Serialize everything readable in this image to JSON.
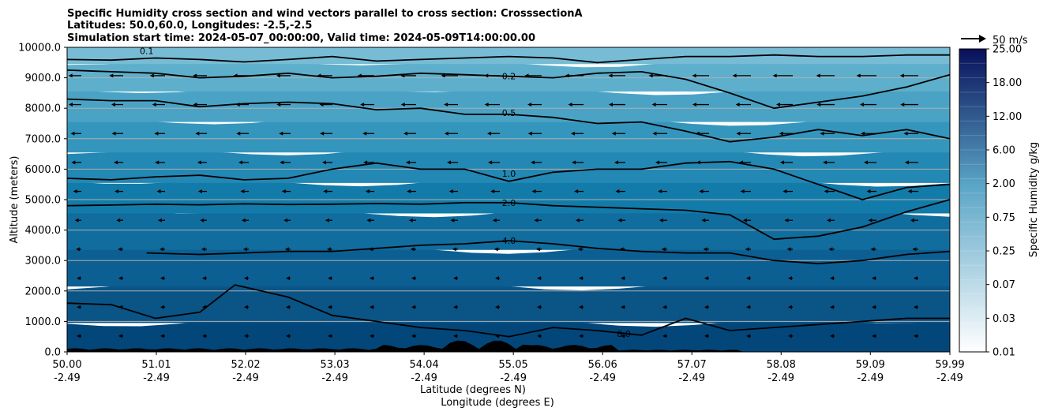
{
  "title_lines": [
    "Specific Humidity cross section and wind vectors parallel to cross section: CrosssectionA",
    "Latitudes: 50.0,60.0, Longitudes: -2.5,-2.5",
    "Simulation start time: 2024-05-07_00:00:00, Valid time: 2024-05-09T14:00:00.00"
  ],
  "quiver_key": {
    "label": "50 m/s"
  },
  "colors": {
    "terrain": "#000000",
    "gridline": "#b0b0b0",
    "contour": "#000000",
    "vector": "#000000"
  },
  "chart_data": {
    "type": "contourf",
    "title": "Specific Humidity cross section and wind vectors parallel to cross section: CrosssectionA",
    "xlabel_lat": "Latitude (degrees N)",
    "xlabel_lon": "Longitude (degrees E)",
    "ylabel": "Altitude (meters)",
    "ylim": [
      0,
      10000
    ],
    "xlim": [
      50.0,
      59.99
    ],
    "y_ticks": [
      "0.0",
      "1000.0",
      "2000.0",
      "3000.0",
      "4000.0",
      "5000.0",
      "6000.0",
      "7000.0",
      "8000.0",
      "9000.0",
      "10000.0"
    ],
    "y_tick_values": [
      0,
      1000,
      2000,
      3000,
      4000,
      5000,
      6000,
      7000,
      8000,
      9000,
      10000
    ],
    "x_ticks": [
      {
        "lat": "50.00",
        "lon": "-2.49",
        "value": 50.0
      },
      {
        "lat": "51.01",
        "lon": "-2.49",
        "value": 51.01
      },
      {
        "lat": "52.02",
        "lon": "-2.49",
        "value": 52.02
      },
      {
        "lat": "53.03",
        "lon": "-2.49",
        "value": 53.03
      },
      {
        "lat": "54.04",
        "lon": "-2.49",
        "value": 54.04
      },
      {
        "lat": "55.05",
        "lon": "-2.49",
        "value": 55.05
      },
      {
        "lat": "56.06",
        "lon": "-2.49",
        "value": 56.06
      },
      {
        "lat": "57.07",
        "lon": "-2.49",
        "value": 57.07
      },
      {
        "lat": "58.08",
        "lon": "-2.49",
        "value": 58.08
      },
      {
        "lat": "59.09",
        "lon": "-2.49",
        "value": 59.09
      },
      {
        "lat": "59.99",
        "lon": "-2.49",
        "value": 59.99
      }
    ],
    "colorbar": {
      "label": "Specific Humidity g/kg",
      "tick_labels": [
        "0.01",
        "0.03",
        "0.07",
        "0.25",
        "0.75",
        "2.00",
        "6.00",
        "12.00",
        "18.00",
        "25.00"
      ],
      "levels": 21,
      "color_low": "#ffffff",
      "color_mid": "#5aa5c6",
      "color_high": "#08105a"
    },
    "humidity_bands": [
      {
        "alt_bottom": 0,
        "alt_top": 1000,
        "color": "#03467a"
      },
      {
        "alt_bottom": 1000,
        "alt_top": 2200,
        "color": "#0a5486"
      },
      {
        "alt_bottom": 2200,
        "alt_top": 3400,
        "color": "#0c5f92"
      },
      {
        "alt_bottom": 3400,
        "alt_top": 4600,
        "color": "#106d9e"
      },
      {
        "alt_bottom": 4600,
        "alt_top": 5600,
        "color": "#127ba9"
      },
      {
        "alt_bottom": 5600,
        "alt_top": 6600,
        "color": "#2388b3"
      },
      {
        "alt_bottom": 6600,
        "alt_top": 7600,
        "color": "#3596bd"
      },
      {
        "alt_bottom": 7600,
        "alt_top": 8600,
        "color": "#4aa3c5"
      },
      {
        "alt_bottom": 8600,
        "alt_top": 9500,
        "color": "#5dafcc"
      },
      {
        "alt_bottom": 9500,
        "alt_top": 10000,
        "color": "#77bcd4"
      }
    ],
    "contours": [
      {
        "level": "0.1",
        "label_pos": [
          50.9,
          9880
        ],
        "points": [
          [
            50.0,
            9600
          ],
          [
            50.5,
            9580
          ],
          [
            51.0,
            9650
          ],
          [
            51.5,
            9600
          ],
          [
            52.0,
            9520
          ],
          [
            52.5,
            9600
          ],
          [
            53.0,
            9700
          ],
          [
            53.5,
            9550
          ],
          [
            54.0,
            9600
          ],
          [
            54.5,
            9650
          ],
          [
            55.0,
            9700
          ],
          [
            55.5,
            9650
          ],
          [
            56.0,
            9500
          ],
          [
            56.5,
            9600
          ],
          [
            57.0,
            9700
          ],
          [
            57.5,
            9700
          ],
          [
            58.0,
            9750
          ],
          [
            58.5,
            9700
          ],
          [
            59.0,
            9700
          ],
          [
            59.5,
            9750
          ],
          [
            59.99,
            9750
          ]
        ]
      },
      {
        "level": "0.2",
        "label_pos": [
          55.0,
          9050
        ],
        "points": [
          [
            50.0,
            9250
          ],
          [
            50.5,
            9200
          ],
          [
            51.0,
            9150
          ],
          [
            51.5,
            9000
          ],
          [
            52.0,
            9050
          ],
          [
            52.5,
            9150
          ],
          [
            53.0,
            9000
          ],
          [
            53.5,
            9050
          ],
          [
            54.0,
            9150
          ],
          [
            54.5,
            9100
          ],
          [
            55.0,
            9050
          ],
          [
            55.5,
            9000
          ],
          [
            56.0,
            9150
          ],
          [
            56.5,
            9200
          ],
          [
            57.0,
            8950
          ],
          [
            57.5,
            8500
          ],
          [
            58.0,
            8000
          ],
          [
            58.5,
            8200
          ],
          [
            59.0,
            8400
          ],
          [
            59.5,
            8700
          ],
          [
            59.99,
            9100
          ]
        ]
      },
      {
        "level": "0.5",
        "label_pos": [
          55.0,
          7850
        ],
        "points": [
          [
            50.0,
            8300
          ],
          [
            50.5,
            8250
          ],
          [
            51.0,
            8250
          ],
          [
            51.5,
            8050
          ],
          [
            52.0,
            8150
          ],
          [
            52.5,
            8200
          ],
          [
            53.0,
            8150
          ],
          [
            53.5,
            7950
          ],
          [
            54.0,
            8000
          ],
          [
            54.5,
            7800
          ],
          [
            55.0,
            7800
          ],
          [
            55.5,
            7700
          ],
          [
            56.0,
            7500
          ],
          [
            56.5,
            7550
          ],
          [
            57.0,
            7250
          ],
          [
            57.5,
            6900
          ],
          [
            58.0,
            7050
          ],
          [
            58.5,
            7300
          ],
          [
            59.0,
            7100
          ],
          [
            59.5,
            7300
          ],
          [
            59.99,
            7000
          ]
        ]
      },
      {
        "level": "1.0",
        "label_pos": [
          55.0,
          5850
        ],
        "points": [
          [
            50.0,
            5700
          ],
          [
            50.5,
            5650
          ],
          [
            51.0,
            5750
          ],
          [
            51.5,
            5800
          ],
          [
            52.0,
            5650
          ],
          [
            52.5,
            5700
          ],
          [
            53.0,
            6000
          ],
          [
            53.5,
            6200
          ],
          [
            54.0,
            6000
          ],
          [
            54.5,
            6000
          ],
          [
            55.0,
            5600
          ],
          [
            55.5,
            5900
          ],
          [
            56.0,
            6000
          ],
          [
            56.5,
            6000
          ],
          [
            57.0,
            6200
          ],
          [
            57.5,
            6250
          ],
          [
            58.0,
            6000
          ],
          [
            58.5,
            5500
          ],
          [
            59.0,
            5000
          ],
          [
            59.5,
            5400
          ],
          [
            59.99,
            5500
          ]
        ]
      },
      {
        "level": "2.0",
        "label_pos": [
          55.0,
          4900
        ],
        "points": [
          [
            50.0,
            4800
          ],
          [
            50.5,
            4820
          ],
          [
            51.0,
            4850
          ],
          [
            51.5,
            4830
          ],
          [
            52.0,
            4860
          ],
          [
            52.5,
            4840
          ],
          [
            53.0,
            4850
          ],
          [
            53.5,
            4870
          ],
          [
            54.0,
            4850
          ],
          [
            54.5,
            4900
          ],
          [
            55.0,
            4900
          ],
          [
            55.5,
            4800
          ],
          [
            56.0,
            4750
          ],
          [
            56.5,
            4700
          ],
          [
            57.0,
            4650
          ],
          [
            57.5,
            4500
          ],
          [
            58.0,
            3700
          ],
          [
            58.5,
            3800
          ],
          [
            59.0,
            4100
          ],
          [
            59.5,
            4600
          ],
          [
            59.99,
            5000
          ]
        ]
      },
      {
        "level": "4.0",
        "label_pos": [
          55.0,
          3650
        ],
        "points": [
          [
            50.9,
            3250
          ],
          [
            51.5,
            3200
          ],
          [
            52.0,
            3250
          ],
          [
            52.5,
            3300
          ],
          [
            53.0,
            3300
          ],
          [
            53.5,
            3400
          ],
          [
            54.0,
            3500
          ],
          [
            54.5,
            3550
          ],
          [
            55.0,
            3650
          ],
          [
            55.5,
            3550
          ],
          [
            56.0,
            3400
          ],
          [
            56.5,
            3300
          ],
          [
            57.0,
            3250
          ],
          [
            57.5,
            3250
          ],
          [
            58.0,
            3000
          ],
          [
            58.5,
            2900
          ],
          [
            59.0,
            3000
          ],
          [
            59.5,
            3200
          ],
          [
            59.99,
            3300
          ]
        ]
      },
      {
        "level": "8.0",
        "label_pos": [
          56.3,
          600
        ],
        "points": [
          [
            50.0,
            1600
          ],
          [
            50.5,
            1550
          ],
          [
            51.0,
            1100
          ],
          [
            51.5,
            1300
          ],
          [
            51.9,
            2200
          ],
          [
            52.5,
            1800
          ],
          [
            53.0,
            1200
          ],
          [
            53.5,
            1000
          ],
          [
            54.0,
            800
          ],
          [
            54.5,
            700
          ],
          [
            55.0,
            500
          ],
          [
            55.5,
            800
          ],
          [
            56.0,
            700
          ],
          [
            56.5,
            550
          ],
          [
            57.0,
            1100
          ],
          [
            57.5,
            700
          ],
          [
            58.0,
            800
          ],
          [
            58.5,
            900
          ],
          [
            59.0,
            1000
          ],
          [
            59.5,
            1100
          ],
          [
            59.99,
            1100
          ]
        ]
      }
    ]
  }
}
